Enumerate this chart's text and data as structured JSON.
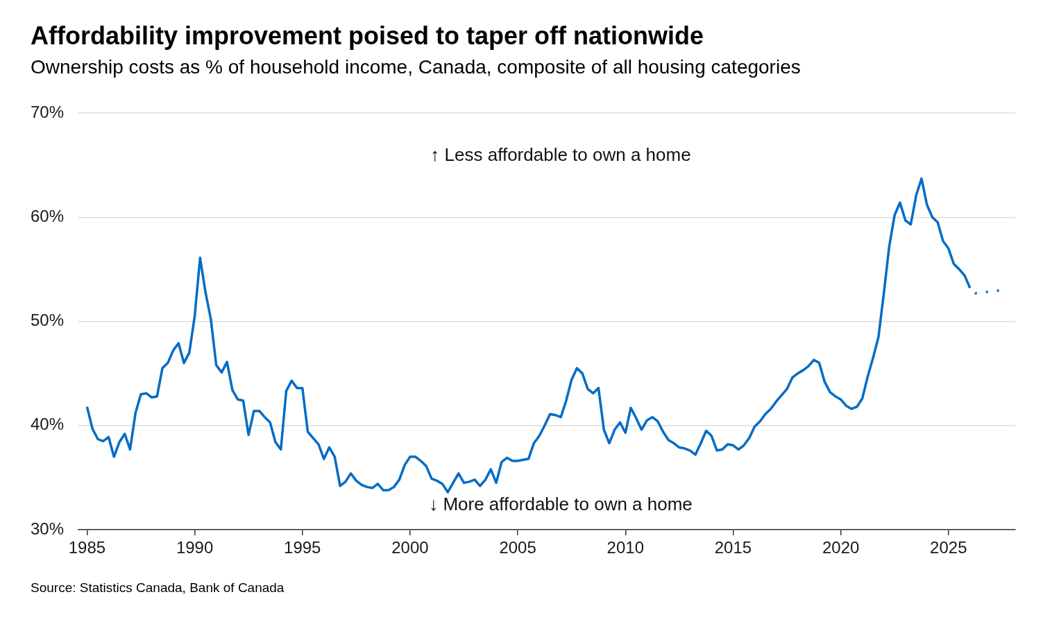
{
  "chart_data": {
    "type": "line",
    "title": "Affordability improvement poised to taper off nationwide",
    "subtitle": "Ownership costs as % of household income, Canada, composite of all housing categories",
    "series": [
      {
        "color": "#006cc4",
        "x": [
          1985,
          1985.25,
          1985.5,
          1985.75,
          1986,
          1986.25,
          1986.5,
          1986.75,
          1987,
          1987.25,
          1987.5,
          1987.75,
          1988,
          1988.25,
          1988.5,
          1988.75,
          1989,
          1989.25,
          1989.5,
          1989.75,
          1990,
          1990.25,
          1990.5,
          1990.75,
          1991,
          1991.25,
          1991.5,
          1991.75,
          1992,
          1992.25,
          1992.5,
          1992.75,
          1993,
          1993.25,
          1993.5,
          1993.75,
          1994,
          1994.25,
          1994.5,
          1994.75,
          1995,
          1995.25,
          1995.5,
          1995.75,
          1996,
          1996.25,
          1996.5,
          1996.75,
          1997,
          1997.25,
          1997.5,
          1997.75,
          1998,
          1998.25,
          1998.5,
          1998.75,
          1999,
          1999.25,
          1999.5,
          1999.75,
          2000,
          2000.25,
          2000.5,
          2000.75,
          2001,
          2001.25,
          2001.5,
          2001.75,
          2002,
          2002.25,
          2002.5,
          2002.75,
          2003,
          2003.25,
          2003.5,
          2003.75,
          2004,
          2004.25,
          2004.5,
          2004.75,
          2005,
          2005.25,
          2005.5,
          2005.75,
          2006,
          2006.25,
          2006.5,
          2006.75,
          2007,
          2007.25,
          2007.5,
          2007.75,
          2008,
          2008.25,
          2008.5,
          2008.75,
          2009,
          2009.25,
          2009.5,
          2009.75,
          2010,
          2010.25,
          2010.5,
          2010.75,
          2011,
          2011.25,
          2011.5,
          2011.75,
          2012,
          2012.25,
          2012.5,
          2012.75,
          2013,
          2013.25,
          2013.5,
          2013.75,
          2014,
          2014.25,
          2014.5,
          2014.75,
          2015,
          2015.25,
          2015.5,
          2015.75,
          2016,
          2016.25,
          2016.5,
          2016.75,
          2017,
          2017.25,
          2017.5,
          2017.75,
          2018,
          2018.25,
          2018.5,
          2018.75,
          2019,
          2019.25,
          2019.5,
          2019.75,
          2020,
          2020.25,
          2020.5,
          2020.75,
          2021,
          2021.25,
          2021.5,
          2021.75,
          2022,
          2022.25,
          2022.5,
          2022.75,
          2023,
          2023.25,
          2023.5,
          2023.75,
          2024,
          2024.25,
          2024.5,
          2024.75,
          2025,
          2025.25,
          2025.5,
          2025.75,
          2026
        ],
        "values": [
          41.8,
          39.7,
          38.7,
          38.5,
          38.9,
          37.0,
          38.4,
          39.2,
          37.7,
          41.2,
          43.0,
          43.1,
          42.7,
          42.8,
          45.5,
          46.0,
          47.2,
          47.9,
          46.0,
          47.0,
          50.5,
          56.1,
          52.8,
          50.2,
          45.8,
          45.1,
          46.1,
          43.4,
          42.5,
          42.4,
          39.1,
          41.4,
          41.4,
          40.8,
          40.3,
          38.4,
          37.7,
          43.3,
          44.3,
          43.6,
          43.6,
          39.4,
          38.8,
          38.2,
          36.8,
          37.9,
          37.0,
          34.2,
          34.6,
          35.4,
          34.7,
          34.3,
          34.1,
          34.0,
          34.4,
          33.8,
          33.8,
          34.1,
          34.8,
          36.2,
          37.0,
          37.0,
          36.6,
          36.1,
          34.9,
          34.7,
          34.4,
          33.6,
          34.5,
          35.4,
          34.5,
          34.6,
          34.8,
          34.2,
          34.8,
          35.8,
          34.5,
          36.5,
          36.9,
          36.6,
          36.6,
          36.7,
          36.8,
          38.3,
          39.0,
          40.0,
          41.1,
          41.0,
          40.8,
          42.4,
          44.4,
          45.5,
          45.0,
          43.5,
          43.1,
          43.6,
          39.6,
          38.3,
          39.6,
          40.3,
          39.3,
          41.7,
          40.7,
          39.6,
          40.5,
          40.8,
          40.4,
          39.4,
          38.6,
          38.3,
          37.9,
          37.8,
          37.6,
          37.2,
          38.3,
          39.5,
          39.0,
          37.6,
          37.7,
          38.2,
          38.1,
          37.7,
          38.1,
          38.8,
          39.9,
          40.4,
          41.1,
          41.6,
          42.3,
          42.9,
          43.5,
          44.6,
          45.0,
          45.3,
          45.7,
          46.3,
          46.0,
          44.2,
          43.2,
          42.8,
          42.5,
          41.9,
          41.6,
          41.8,
          42.6,
          44.7,
          46.5,
          48.5,
          52.7,
          57.2,
          60.2,
          61.4,
          59.7,
          59.3,
          62.1,
          63.7,
          61.2,
          60.0,
          59.5,
          57.7,
          57.0,
          55.5,
          55.0,
          54.4,
          53.2
        ]
      },
      {
        "color": "#006cc4",
        "line_style": "dotted",
        "x": [
          2026,
          2026.25,
          2027.5
        ],
        "values": [
          53.2,
          52.7,
          53.0
        ]
      }
    ],
    "xlim": [
      1984.6,
      2028.1
    ],
    "xticks": [
      1985,
      1990,
      1995,
      2000,
      2005,
      2010,
      2015,
      2020,
      2025
    ],
    "ylim": [
      30,
      70
    ],
    "yticks": [
      {
        "value": 30,
        "label": "30%"
      },
      {
        "value": 40,
        "label": "40%"
      },
      {
        "value": 50,
        "label": "50%"
      },
      {
        "value": 60,
        "label": "60%"
      },
      {
        "value": 70,
        "label": "70%"
      }
    ],
    "grid": "y",
    "annotations": [
      "↑ Less affordable to own a home",
      "↓ More affordable to own a home",
      "Source: Statistics Canada, Bank of Canada"
    ]
  }
}
